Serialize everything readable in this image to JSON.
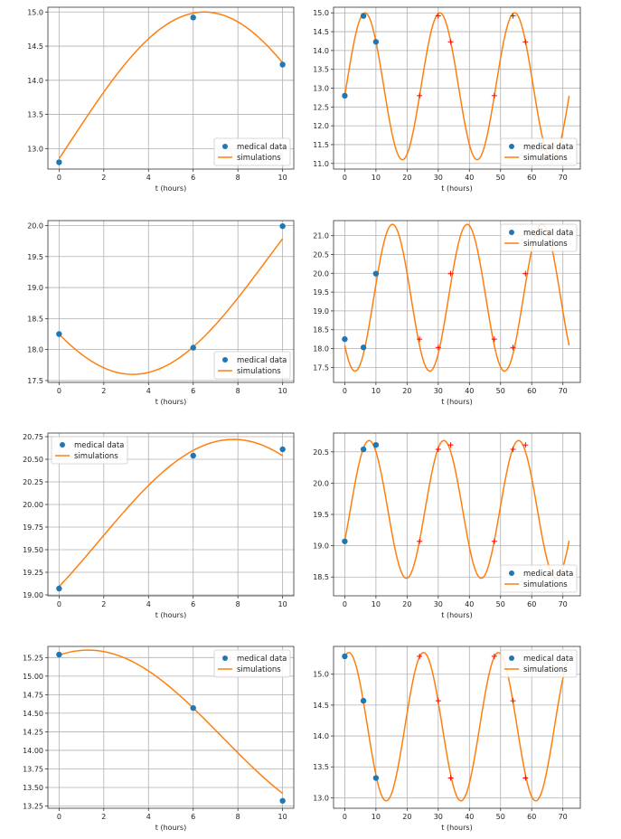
{
  "colors": {
    "data_marker": "#1f77b4",
    "simulation_line": "#ff7f0e",
    "prediction_marker": "#ff0000",
    "grid": "#b0b0b0",
    "axes": "#333333"
  },
  "legend_labels": {
    "data": "medical data",
    "sim": "simulations"
  },
  "chart_data": [
    {
      "type": "line",
      "row": 1,
      "col": 1,
      "xlabel": "t (hours)",
      "xlim": [
        -0.5,
        10.5
      ],
      "ylim": [
        12.7,
        15.07
      ],
      "xticks": [
        0,
        2,
        4,
        6,
        8,
        10
      ],
      "yticks": [
        13.0,
        13.5,
        14.0,
        14.5,
        15.0
      ],
      "ytick_decimals": 1,
      "legend_position": "lower-right",
      "data_points": {
        "x": [
          0,
          6,
          10
        ],
        "y": [
          12.8,
          14.92,
          14.23
        ]
      },
      "predictions": {
        "x": [],
        "y": []
      },
      "simulation": {
        "mean": 13.1,
        "amp": 1.9,
        "period": 24,
        "peak_t": 6.5,
        "t_end": 10
      }
    },
    {
      "type": "line",
      "row": 1,
      "col": 2,
      "xlabel": "t (hours)",
      "xlim": [
        -3.6,
        75.6
      ],
      "ylim": [
        10.85,
        15.15
      ],
      "xticks": [
        0,
        10,
        20,
        30,
        40,
        50,
        60,
        70
      ],
      "yticks": [
        11.0,
        11.5,
        12.0,
        12.5,
        13.0,
        13.5,
        14.0,
        14.5,
        15.0
      ],
      "ytick_decimals": 1,
      "legend_position": "lower-right",
      "data_points": {
        "x": [
          0,
          6,
          10
        ],
        "y": [
          12.8,
          14.92,
          14.23
        ]
      },
      "predictions": {
        "x": [
          24,
          30,
          34,
          48,
          54,
          58
        ],
        "y": [
          12.8,
          14.92,
          14.23,
          12.8,
          14.92,
          14.23
        ]
      },
      "simulation": {
        "mean": 13.05,
        "amp": 1.95,
        "period": 24,
        "peak_t": 6.5,
        "t_end": 72
      }
    },
    {
      "type": "line",
      "row": 2,
      "col": 1,
      "xlabel": "t (hours)",
      "xlim": [
        -0.5,
        10.5
      ],
      "ylim": [
        17.47,
        20.08
      ],
      "xticks": [
        0,
        2,
        4,
        6,
        8,
        10
      ],
      "yticks": [
        17.5,
        18.0,
        18.5,
        19.0,
        19.5,
        20.0
      ],
      "ytick_decimals": 1,
      "legend_position": "lower-right",
      "data_points": {
        "x": [
          0,
          6,
          10
        ],
        "y": [
          18.25,
          18.03,
          19.99
        ]
      },
      "predictions": {
        "x": [],
        "y": []
      },
      "simulation": {
        "mean": 19.45,
        "amp": 1.85,
        "period": 24,
        "peak_t": 15.3,
        "t_end": 10
      }
    },
    {
      "type": "line",
      "row": 2,
      "col": 2,
      "xlabel": "t (hours)",
      "xlim": [
        -3.6,
        75.6
      ],
      "ylim": [
        17.1,
        21.4
      ],
      "xticks": [
        0,
        10,
        20,
        30,
        40,
        50,
        60,
        70
      ],
      "yticks": [
        17.5,
        18.0,
        18.5,
        19.0,
        19.5,
        20.0,
        20.5,
        21.0
      ],
      "ytick_decimals": 1,
      "legend_position": "top-right",
      "data_points": {
        "x": [
          0,
          6,
          10
        ],
        "y": [
          18.25,
          18.03,
          19.99
        ]
      },
      "predictions": {
        "x": [
          24,
          30,
          34,
          48,
          54,
          58
        ],
        "y": [
          18.25,
          18.03,
          19.99,
          18.25,
          18.03,
          19.99
        ]
      },
      "simulation": {
        "mean": 19.35,
        "amp": 1.95,
        "period": 24,
        "peak_t": 15.3,
        "t_end": 72
      }
    },
    {
      "type": "line",
      "row": 3,
      "col": 1,
      "xlabel": "t (hours)",
      "xlim": [
        -0.5,
        10.5
      ],
      "ylim": [
        18.99,
        20.79
      ],
      "xticks": [
        0,
        2,
        4,
        6,
        8,
        10
      ],
      "yticks": [
        19.0,
        19.25,
        19.5,
        19.75,
        20.0,
        20.25,
        20.5,
        20.75
      ],
      "ytick_decimals": 2,
      "legend_position": "top-left",
      "data_points": {
        "x": [
          0,
          6,
          10
        ],
        "y": [
          19.07,
          20.54,
          20.61
        ]
      },
      "predictions": {
        "x": [],
        "y": []
      },
      "simulation": {
        "mean": 19.6,
        "amp": 1.12,
        "period": 24,
        "peak_t": 7.8,
        "t_end": 10
      }
    },
    {
      "type": "line",
      "row": 3,
      "col": 2,
      "xlabel": "t (hours)",
      "xlim": [
        -3.6,
        75.6
      ],
      "ylim": [
        18.2,
        20.8
      ],
      "xticks": [
        0,
        10,
        20,
        30,
        40,
        50,
        60,
        70
      ],
      "yticks": [
        18.5,
        19.0,
        19.5,
        20.0,
        20.5
      ],
      "ytick_decimals": 1,
      "legend_position": "lower-right",
      "data_points": {
        "x": [
          0,
          6,
          10
        ],
        "y": [
          19.07,
          20.54,
          20.61
        ]
      },
      "predictions": {
        "x": [
          24,
          30,
          34,
          48,
          54,
          58
        ],
        "y": [
          19.07,
          20.54,
          20.61,
          19.07,
          20.54,
          20.61
        ]
      },
      "simulation": {
        "mean": 19.58,
        "amp": 1.1,
        "period": 24,
        "peak_t": 7.8,
        "t_end": 72
      }
    },
    {
      "type": "line",
      "row": 4,
      "col": 1,
      "xlabel": "t (hours)",
      "xlim": [
        -0.5,
        10.5
      ],
      "ylim": [
        13.22,
        15.4
      ],
      "xticks": [
        0,
        2,
        4,
        6,
        8,
        10
      ],
      "yticks": [
        13.25,
        13.5,
        13.75,
        14.0,
        14.25,
        14.5,
        14.75,
        15.0,
        15.25
      ],
      "ytick_decimals": 2,
      "legend_position": "top-right",
      "data_points": {
        "x": [
          0,
          6,
          10
        ],
        "y": [
          15.29,
          14.57,
          13.32
        ]
      },
      "predictions": {
        "x": [],
        "y": []
      },
      "simulation": {
        "mean": 14.18,
        "amp": 1.17,
        "period": 24,
        "peak_t": 1.3,
        "t_end": 10
      }
    },
    {
      "type": "line",
      "row": 4,
      "col": 2,
      "xlabel": "t (hours)",
      "xlim": [
        -3.6,
        75.6
      ],
      "ylim": [
        12.83,
        15.45
      ],
      "xticks": [
        0,
        10,
        20,
        30,
        40,
        50,
        60,
        70
      ],
      "yticks": [
        13.0,
        13.5,
        14.0,
        14.5,
        15.0
      ],
      "ytick_decimals": 1,
      "legend_position": "top-right",
      "data_points": {
        "x": [
          0,
          6,
          10
        ],
        "y": [
          15.29,
          14.57,
          13.32
        ]
      },
      "predictions": {
        "x": [
          24,
          30,
          34,
          48,
          54,
          58
        ],
        "y": [
          15.29,
          14.57,
          13.32,
          15.29,
          14.57,
          13.32
        ]
      },
      "simulation": {
        "mean": 14.15,
        "amp": 1.2,
        "period": 24,
        "peak_t": 1.3,
        "t_end": 72
      }
    }
  ]
}
